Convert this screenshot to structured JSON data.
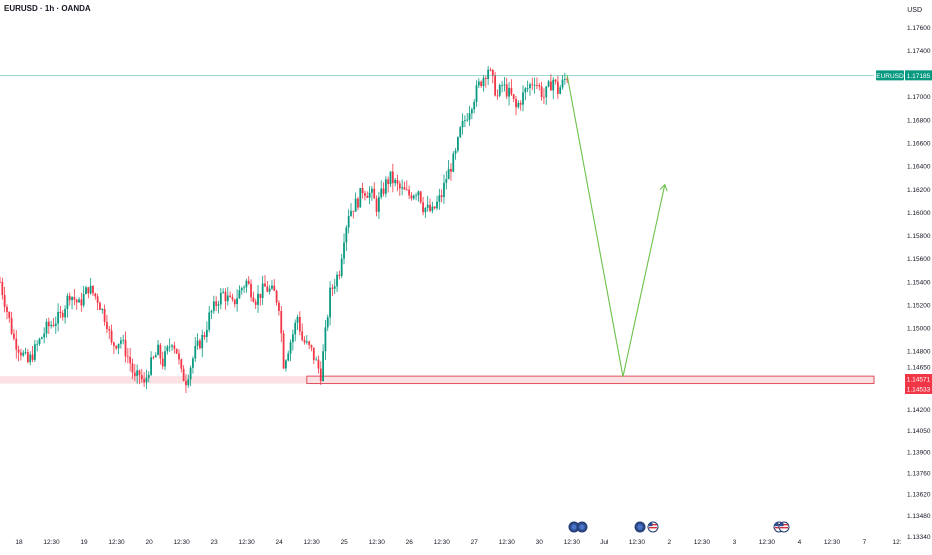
{
  "header": {
    "title": "EURUSD · 1h · OANDA",
    "currency": "USD"
  },
  "colors": {
    "up": "#089981",
    "down": "#f23645",
    "projection": "#6cc24a",
    "price_line": "#089981",
    "zone_fill": "#f7c9cd",
    "zone_border": "#e0505e"
  },
  "price_axis": {
    "ticks": [
      "1.17600",
      "1.17400",
      "1.17200",
      "1.17000",
      "1.16800",
      "1.16600",
      "1.16400",
      "1.16200",
      "1.16000",
      "1.15800",
      "1.15600",
      "1.15400",
      "1.15200",
      "1.15000",
      "1.14800",
      "1.14650",
      "1.14350",
      "1.14200",
      "1.14050",
      "1.13900",
      "1.13760",
      "1.13620",
      "1.13480",
      "1.13340"
    ]
  },
  "time_axis": {
    "ticks": [
      "18",
      "12:30",
      "19",
      "12:30",
      "20",
      "12:30",
      "23",
      "12:30",
      "24",
      "12:30",
      "25",
      "12:30",
      "26",
      "12:30",
      "27",
      "12:30",
      "30",
      "12:30",
      "Jul",
      "12:30",
      "2",
      "12:30",
      "3",
      "12:30",
      "4",
      "12:30",
      "7",
      "12:"
    ]
  },
  "badges": {
    "symbol": "EURUSD",
    "last_price": "1.17185",
    "zone_top": "1.14571",
    "zone_bottom": "1.14533"
  },
  "event_icons": [
    "event-icon-1",
    "event-icon-2",
    "event-icon-3",
    "us-flag-icon",
    "us-flag-icon-2",
    "us-flag-icon-3"
  ],
  "chart_data": {
    "type": "candlestick",
    "symbol": "EURUSD",
    "timeframe": "1h",
    "broker": "OANDA",
    "last_price": 1.17185,
    "support_zone": [
      1.14533,
      1.14571
    ],
    "ylim": [
      1.1334,
      1.1775
    ],
    "close_path": [
      [
        0,
        1.154
      ],
      [
        3,
        1.149
      ],
      [
        6,
        1.147
      ],
      [
        8,
        1.1485
      ],
      [
        10,
        1.15
      ],
      [
        13,
        1.151
      ],
      [
        15,
        1.153
      ],
      [
        17,
        1.152
      ],
      [
        19,
        1.1535
      ],
      [
        21,
        1.1525
      ],
      [
        23,
        1.1505
      ],
      [
        24,
        1.1485
      ],
      [
        26,
        1.149
      ],
      [
        28,
        1.147
      ],
      [
        29,
        1.1455
      ],
      [
        30,
        1.146
      ],
      [
        31,
        1.145
      ],
      [
        32,
        1.1465
      ],
      [
        34,
        1.148
      ],
      [
        35,
        1.147
      ],
      [
        37,
        1.149
      ],
      [
        38,
        1.148
      ],
      [
        39,
        1.146
      ],
      [
        40,
        1.1455
      ],
      [
        42,
        1.148
      ],
      [
        44,
        1.1495
      ],
      [
        45,
        1.151
      ],
      [
        47,
        1.1525
      ],
      [
        48,
        1.153
      ],
      [
        50,
        1.152
      ],
      [
        52,
        1.1535
      ],
      [
        53,
        1.154
      ],
      [
        55,
        1.1525
      ],
      [
        57,
        1.1535
      ],
      [
        59,
        1.153
      ],
      [
        60,
        1.152
      ],
      [
        61,
        1.147
      ],
      [
        63,
        1.1495
      ],
      [
        64,
        1.151
      ],
      [
        65,
        1.149
      ],
      [
        67,
        1.148
      ],
      [
        68,
        1.147
      ],
      [
        69,
        1.146
      ],
      [
        71,
        1.153
      ],
      [
        73,
        1.155
      ],
      [
        74,
        1.158
      ],
      [
        75,
        1.16
      ],
      [
        77,
        1.161
      ],
      [
        78,
        1.162
      ],
      [
        80,
        1.1615
      ],
      [
        81,
        1.1605
      ],
      [
        83,
        1.1625
      ],
      [
        84,
        1.163
      ],
      [
        86,
        1.162
      ],
      [
        88,
        1.1615
      ],
      [
        90,
        1.162
      ],
      [
        91,
        1.1605
      ],
      [
        93,
        1.16
      ],
      [
        95,
        1.1615
      ],
      [
        96,
        1.163
      ],
      [
        98,
        1.165
      ],
      [
        99,
        1.167
      ],
      [
        101,
        1.169
      ],
      [
        102,
        1.17
      ],
      [
        103,
        1.171
      ],
      [
        105,
        1.1725
      ],
      [
        107,
        1.17
      ],
      [
        108,
        1.171
      ],
      [
        110,
        1.17
      ],
      [
        111,
        1.169
      ],
      [
        113,
        1.1705
      ],
      [
        115,
        1.1715
      ],
      [
        117,
        1.17
      ],
      [
        119,
        1.1715
      ],
      [
        120,
        1.1705
      ],
      [
        122,
        1.1718
      ]
    ],
    "projection": [
      [
        122,
        1.17185
      ],
      [
        134,
        1.1458
      ],
      [
        143,
        1.1624
      ]
    ],
    "x_extent": [
      0,
      188
    ]
  }
}
